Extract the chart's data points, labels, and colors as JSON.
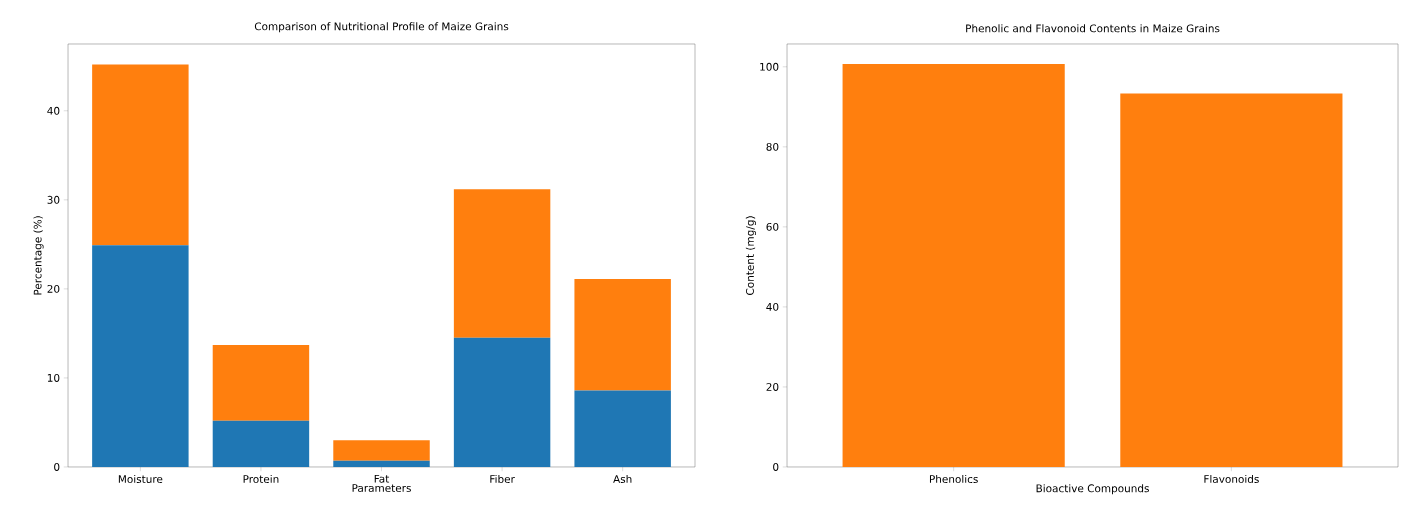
{
  "chart_data": [
    {
      "type": "bar",
      "title": "Comparison of Nutritional Profile of Maize Grains",
      "xlabel": "Parameters",
      "ylabel": "Percentage (%)",
      "categories": [
        "Moisture",
        "Protein",
        "Fat",
        "Fiber",
        "Ash"
      ],
      "stacked": true,
      "series": [
        {
          "color": "#1f77b4",
          "values": [
            24.9,
            5.2,
            0.7,
            14.5,
            8.6
          ]
        },
        {
          "color": "#ff7f0e",
          "values": [
            20.3,
            8.5,
            2.3,
            16.7,
            12.5
          ]
        }
      ],
      "ylim": [
        0,
        47.5
      ],
      "yticks": [
        0,
        10,
        20,
        30,
        40
      ],
      "grid": false
    },
    {
      "type": "bar",
      "title": "Phenolic and Flavonoid Contents in Maize Grains",
      "xlabel": "Bioactive Compounds",
      "ylabel": "Content (mg/g)",
      "categories": [
        "Phenolics",
        "Flavonoids"
      ],
      "values": [
        100.7,
        93.3
      ],
      "color": "#ff7f0e",
      "ylim": [
        0,
        105.7
      ],
      "yticks": [
        0,
        20,
        40,
        60,
        80,
        100
      ],
      "grid": false
    }
  ]
}
